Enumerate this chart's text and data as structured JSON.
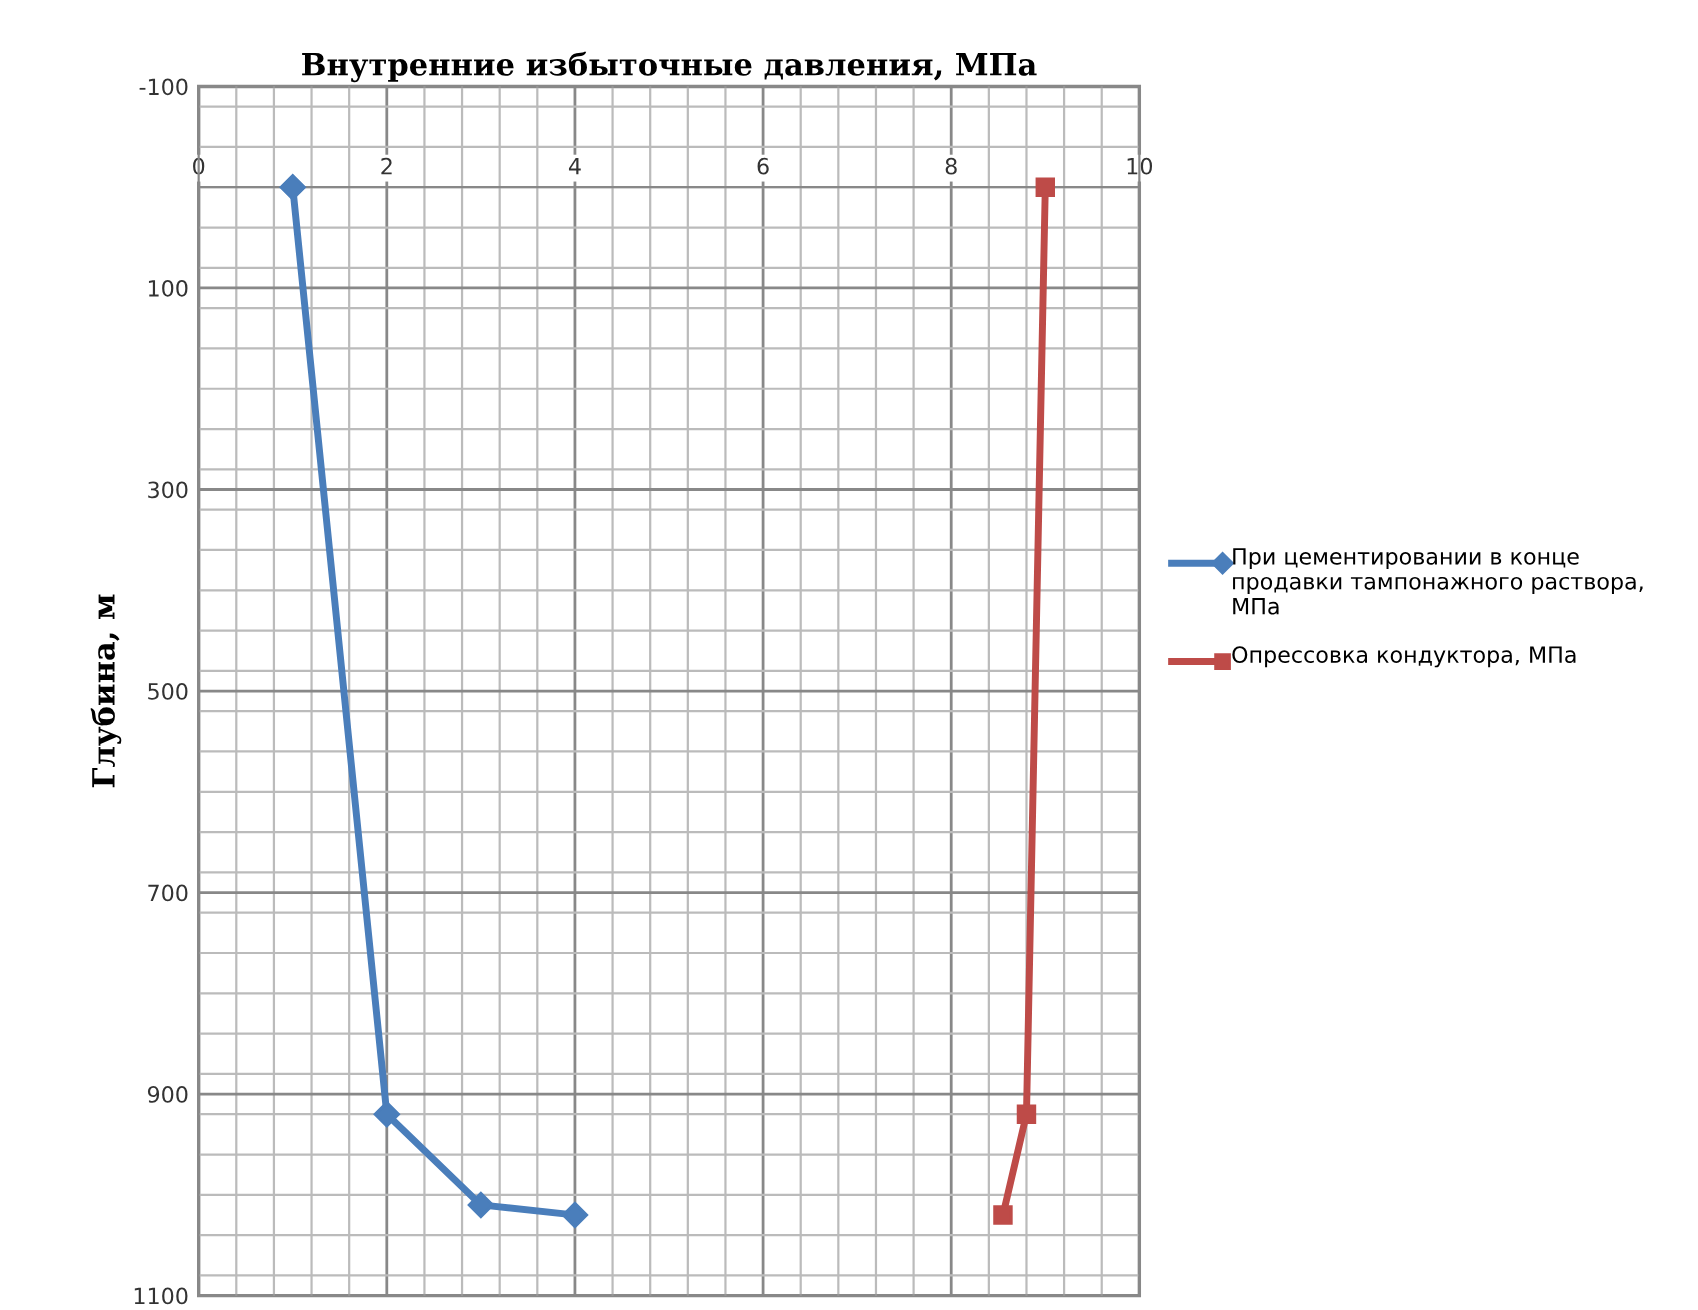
{
  "chart_data": {
    "type": "line",
    "title": "Внутренние избыточные давления, МПа",
    "ylabel": "Глубина, м",
    "xlim": [
      0,
      10
    ],
    "xticks": [
      0,
      2,
      4,
      6,
      8,
      10
    ],
    "ylim": [
      1100,
      -100
    ],
    "yticks": [
      -100,
      100,
      300,
      500,
      700,
      900,
      1100
    ],
    "grid": true,
    "legend": "right",
    "line_style": "solid",
    "series": [
      {
        "name": "При цементировании в конце продавки тампонажного раствора, МПа",
        "color": "#4a7ebb",
        "marker": "diamond",
        "x": [
          1,
          2,
          3,
          4
        ],
        "values": [
          0,
          920,
          1010,
          1020
        ]
      },
      {
        "name": "Опрессовка кондуктора, МПа",
        "color": "#be4b48",
        "marker": "square",
        "x": [
          9,
          8.8,
          8.55
        ],
        "values": [
          0,
          920,
          1020
        ]
      }
    ]
  }
}
